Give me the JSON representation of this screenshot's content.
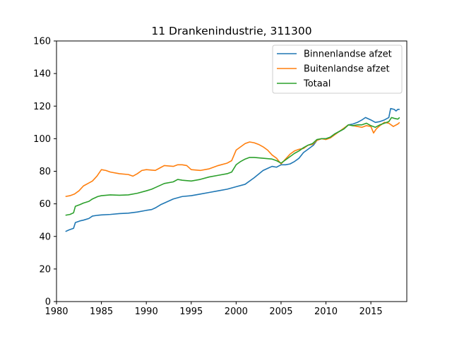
{
  "chart_data": {
    "type": "line",
    "title": "11 Drankenindustrie, 311300",
    "xlabel": "",
    "ylabel": "",
    "xlim": [
      1980,
      2019
    ],
    "ylim": [
      0,
      160
    ],
    "xticks": [
      1980,
      1985,
      1990,
      1995,
      2000,
      2005,
      2010,
      2015
    ],
    "yticks": [
      0,
      20,
      40,
      60,
      80,
      100,
      120,
      140,
      160
    ],
    "grid": false,
    "legend_position": "top-right",
    "series": [
      {
        "name": "Binnenlandse afzet",
        "color": "#1f77b4",
        "points": [
          [
            1981.0,
            43.0
          ],
          [
            1981.4,
            44.0
          ],
          [
            1981.9,
            45.0
          ],
          [
            1982.1,
            48.5
          ],
          [
            1982.6,
            49.5
          ],
          [
            1983.0,
            50.0
          ],
          [
            1983.6,
            51.0
          ],
          [
            1984.0,
            52.5
          ],
          [
            1984.6,
            53.0
          ],
          [
            1985.0,
            53.2
          ],
          [
            1986.0,
            53.5
          ],
          [
            1987.0,
            54.0
          ],
          [
            1988.0,
            54.3
          ],
          [
            1989.0,
            55.0
          ],
          [
            1990.0,
            56.0
          ],
          [
            1990.6,
            56.5
          ],
          [
            1991.0,
            57.5
          ],
          [
            1991.6,
            59.5
          ],
          [
            1992.0,
            60.5
          ],
          [
            1993.0,
            63.0
          ],
          [
            1994.0,
            64.5
          ],
          [
            1995.0,
            65.0
          ],
          [
            1996.0,
            66.0
          ],
          [
            1997.0,
            67.0
          ],
          [
            1998.0,
            68.0
          ],
          [
            1999.0,
            69.0
          ],
          [
            2000.0,
            70.5
          ],
          [
            2001.0,
            72.0
          ],
          [
            2002.0,
            76.0
          ],
          [
            2003.0,
            80.5
          ],
          [
            2003.6,
            82.0
          ],
          [
            2004.0,
            83.0
          ],
          [
            2004.5,
            82.5
          ],
          [
            2005.0,
            84.0
          ],
          [
            2005.5,
            84.0
          ],
          [
            2006.0,
            84.5
          ],
          [
            2006.5,
            86.0
          ],
          [
            2007.0,
            88.0
          ],
          [
            2007.5,
            91.5
          ],
          [
            2008.0,
            93.5
          ],
          [
            2008.6,
            96.0
          ],
          [
            2009.0,
            99.0
          ],
          [
            2009.5,
            100.0
          ],
          [
            2010.0,
            100.0
          ],
          [
            2010.5,
            101.0
          ],
          [
            2011.0,
            103.0
          ],
          [
            2011.5,
            104.5
          ],
          [
            2012.0,
            106.0
          ],
          [
            2012.5,
            108.5
          ],
          [
            2013.0,
            109.0
          ],
          [
            2013.5,
            110.0
          ],
          [
            2014.0,
            111.5
          ],
          [
            2014.4,
            113.0
          ],
          [
            2015.0,
            111.5
          ],
          [
            2015.5,
            110.0
          ],
          [
            2016.0,
            110.5
          ],
          [
            2016.5,
            111.5
          ],
          [
            2017.0,
            113.0
          ],
          [
            2017.2,
            118.5
          ],
          [
            2017.6,
            118.0
          ],
          [
            2017.8,
            117.0
          ],
          [
            2018.0,
            118.0
          ],
          [
            2018.2,
            118.0
          ]
        ]
      },
      {
        "name": "Buitenlandse afzet",
        "color": "#ff7f0e",
        "points": [
          [
            1981.0,
            64.5
          ],
          [
            1981.5,
            65.0
          ],
          [
            1982.0,
            66.0
          ],
          [
            1982.5,
            68.0
          ],
          [
            1983.0,
            71.0
          ],
          [
            1983.5,
            72.5
          ],
          [
            1984.0,
            74.0
          ],
          [
            1984.5,
            77.0
          ],
          [
            1985.0,
            81.0
          ],
          [
            1985.5,
            80.5
          ],
          [
            1986.0,
            79.5
          ],
          [
            1987.0,
            78.5
          ],
          [
            1988.0,
            78.0
          ],
          [
            1988.5,
            77.0
          ],
          [
            1989.0,
            78.5
          ],
          [
            1989.5,
            80.5
          ],
          [
            1990.0,
            81.0
          ],
          [
            1991.0,
            80.5
          ],
          [
            1991.5,
            82.0
          ],
          [
            1992.0,
            83.5
          ],
          [
            1993.0,
            83.0
          ],
          [
            1993.5,
            84.0
          ],
          [
            1994.0,
            84.0
          ],
          [
            1994.5,
            83.5
          ],
          [
            1995.0,
            81.0
          ],
          [
            1996.0,
            80.5
          ],
          [
            1997.0,
            81.5
          ],
          [
            1998.0,
            83.5
          ],
          [
            1999.0,
            85.0
          ],
          [
            1999.5,
            86.5
          ],
          [
            2000.0,
            93.0
          ],
          [
            2000.5,
            95.0
          ],
          [
            2001.0,
            97.0
          ],
          [
            2001.5,
            98.0
          ],
          [
            2002.0,
            97.5
          ],
          [
            2002.5,
            96.5
          ],
          [
            2003.0,
            95.0
          ],
          [
            2003.5,
            93.0
          ],
          [
            2004.0,
            90.0
          ],
          [
            2004.5,
            88.0
          ],
          [
            2005.0,
            84.5
          ],
          [
            2005.5,
            87.5
          ],
          [
            2006.0,
            90.5
          ],
          [
            2006.5,
            92.5
          ],
          [
            2007.0,
            93.5
          ],
          [
            2007.5,
            94.0
          ],
          [
            2008.0,
            96.0
          ],
          [
            2008.5,
            96.5
          ],
          [
            2009.0,
            99.0
          ],
          [
            2009.5,
            100.0
          ],
          [
            2010.0,
            99.5
          ],
          [
            2010.5,
            100.5
          ],
          [
            2011.0,
            102.5
          ],
          [
            2011.5,
            104.5
          ],
          [
            2012.0,
            106.5
          ],
          [
            2012.5,
            108.5
          ],
          [
            2013.0,
            108.0
          ],
          [
            2013.5,
            107.5
          ],
          [
            2014.0,
            107.0
          ],
          [
            2014.5,
            108.0
          ],
          [
            2015.0,
            107.5
          ],
          [
            2015.3,
            103.5
          ],
          [
            2015.6,
            106.0
          ],
          [
            2016.0,
            108.0
          ],
          [
            2016.5,
            110.0
          ],
          [
            2017.0,
            109.5
          ],
          [
            2017.5,
            107.5
          ],
          [
            2018.0,
            109.0
          ],
          [
            2018.2,
            110.0
          ]
        ]
      },
      {
        "name": "Totaal",
        "color": "#2ca02c",
        "points": [
          [
            1981.0,
            53.0
          ],
          [
            1981.5,
            53.5
          ],
          [
            1981.9,
            54.5
          ],
          [
            1982.1,
            58.5
          ],
          [
            1982.6,
            59.5
          ],
          [
            1983.0,
            60.5
          ],
          [
            1983.6,
            61.5
          ],
          [
            1984.0,
            63.0
          ],
          [
            1984.6,
            64.5
          ],
          [
            1985.0,
            65.0
          ],
          [
            1986.0,
            65.5
          ],
          [
            1987.0,
            65.3
          ],
          [
            1988.0,
            65.5
          ],
          [
            1989.0,
            66.5
          ],
          [
            1990.0,
            68.0
          ],
          [
            1990.6,
            69.0
          ],
          [
            1991.0,
            70.0
          ],
          [
            1992.0,
            72.5
          ],
          [
            1993.0,
            73.5
          ],
          [
            1993.5,
            75.0
          ],
          [
            1994.0,
            74.5
          ],
          [
            1995.0,
            74.0
          ],
          [
            1996.0,
            75.0
          ],
          [
            1997.0,
            76.5
          ],
          [
            1998.0,
            77.5
          ],
          [
            1999.0,
            78.5
          ],
          [
            1999.5,
            79.5
          ],
          [
            2000.0,
            84.0
          ],
          [
            2000.5,
            86.0
          ],
          [
            2001.0,
            87.5
          ],
          [
            2001.5,
            88.5
          ],
          [
            2002.0,
            88.5
          ],
          [
            2003.0,
            88.0
          ],
          [
            2004.0,
            87.5
          ],
          [
            2004.5,
            86.5
          ],
          [
            2005.0,
            85.0
          ],
          [
            2005.5,
            87.0
          ],
          [
            2006.0,
            89.0
          ],
          [
            2006.5,
            91.0
          ],
          [
            2007.0,
            92.5
          ],
          [
            2007.5,
            94.5
          ],
          [
            2008.0,
            96.0
          ],
          [
            2008.5,
            97.0
          ],
          [
            2009.0,
            99.5
          ],
          [
            2009.5,
            100.0
          ],
          [
            2010.0,
            100.0
          ],
          [
            2010.5,
            101.0
          ],
          [
            2011.0,
            103.0
          ],
          [
            2011.5,
            104.5
          ],
          [
            2012.0,
            106.0
          ],
          [
            2012.5,
            108.5
          ],
          [
            2013.0,
            108.0
          ],
          [
            2013.5,
            108.5
          ],
          [
            2014.0,
            108.5
          ],
          [
            2014.5,
            109.5
          ],
          [
            2015.0,
            108.0
          ],
          [
            2015.5,
            107.0
          ],
          [
            2016.0,
            108.5
          ],
          [
            2016.5,
            109.5
          ],
          [
            2017.0,
            110.5
          ],
          [
            2017.3,
            113.0
          ],
          [
            2017.6,
            112.5
          ],
          [
            2018.0,
            112.0
          ],
          [
            2018.2,
            113.0
          ]
        ]
      }
    ]
  }
}
